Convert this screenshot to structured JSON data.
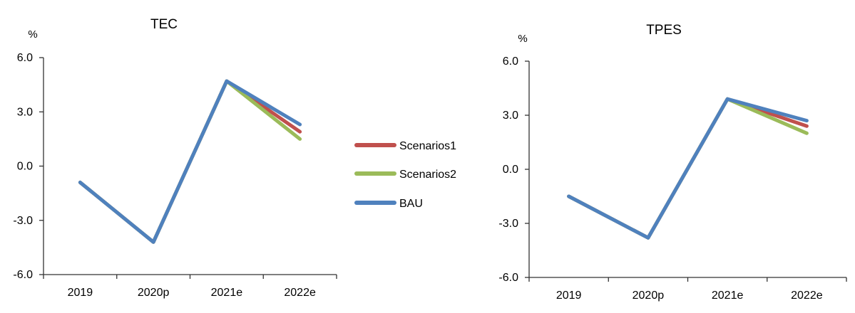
{
  "chart_data": [
    {
      "type": "line",
      "title": "TEC",
      "ylabel": "%",
      "xlabel": "",
      "categories": [
        "2019",
        "2020p",
        "2021e",
        "2022e"
      ],
      "ylim": [
        -6.0,
        6.0
      ],
      "yticks": [
        "6.0",
        "3.0",
        "0.0",
        "-3.0",
        "-6.0"
      ],
      "grid": false,
      "series": [
        {
          "name": "Scenarios1",
          "values": [
            -0.9,
            -4.2,
            4.7,
            1.9
          ]
        },
        {
          "name": "Scenarios2",
          "values": [
            -0.9,
            -4.2,
            4.7,
            1.5
          ]
        },
        {
          "name": "BAU",
          "values": [
            -0.9,
            -4.2,
            4.7,
            2.3
          ]
        }
      ]
    },
    {
      "type": "line",
      "title": "TPES",
      "ylabel": "%",
      "xlabel": "",
      "categories": [
        "2019",
        "2020p",
        "2021e",
        "2022e"
      ],
      "ylim": [
        -6.0,
        6.0
      ],
      "yticks": [
        "6.0",
        "3.0",
        "0.0",
        "-3.0",
        "-6.0"
      ],
      "grid": false,
      "series": [
        {
          "name": "Scenarios1",
          "values": [
            -1.5,
            -3.8,
            3.9,
            2.4
          ]
        },
        {
          "name": "Scenarios2",
          "values": [
            -1.5,
            -3.8,
            3.9,
            2.0
          ]
        },
        {
          "name": "BAU",
          "values": [
            -1.5,
            -3.8,
            3.9,
            2.7
          ]
        }
      ]
    }
  ],
  "legend": {
    "placement": "center",
    "items": [
      {
        "label": "Scenarios1",
        "color": "#c0504d"
      },
      {
        "label": "Scenarios2",
        "color": "#9bbb59"
      },
      {
        "label": "BAU",
        "color": "#4f81bd"
      }
    ]
  }
}
